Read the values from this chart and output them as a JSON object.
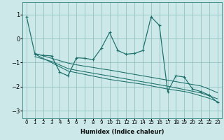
{
  "xlabel": "Humidex (Indice chaleur)",
  "background_color": "#cce8e8",
  "grid_color": "#88bbbb",
  "line_color": "#1a6e6a",
  "xlim": [
    -0.5,
    23.5
  ],
  "ylim": [
    -3.3,
    1.5
  ],
  "xticks": [
    0,
    1,
    2,
    3,
    4,
    5,
    6,
    7,
    8,
    9,
    10,
    11,
    12,
    13,
    14,
    15,
    16,
    17,
    18,
    19,
    20,
    21,
    22,
    23
  ],
  "yticks": [
    -3,
    -2,
    -1,
    0,
    1
  ],
  "jagged_x": [
    0,
    1,
    2,
    3,
    4,
    5,
    6,
    7,
    8,
    9,
    10,
    11,
    12,
    13,
    14,
    15,
    16,
    17,
    18,
    19,
    20,
    21,
    22,
    23
  ],
  "jagged_y": [
    0.9,
    -0.65,
    -0.7,
    -0.72,
    -1.4,
    -1.55,
    -0.8,
    -0.82,
    -0.88,
    -0.4,
    0.25,
    -0.5,
    -0.65,
    -0.62,
    -0.5,
    0.9,
    0.55,
    -2.2,
    -1.55,
    -1.6,
    -2.1,
    -2.2,
    -2.35,
    -2.65
  ],
  "trend1_x": [
    1,
    2,
    3,
    4,
    5,
    6,
    7,
    8,
    9,
    10,
    11,
    12,
    13,
    14,
    15,
    16,
    17,
    18,
    19,
    20,
    21,
    22,
    23
  ],
  "trend1_y": [
    -0.62,
    -0.72,
    -0.82,
    -0.92,
    -1.02,
    -1.09,
    -1.15,
    -1.2,
    -1.26,
    -1.31,
    -1.37,
    -1.43,
    -1.49,
    -1.55,
    -1.61,
    -1.67,
    -1.73,
    -1.79,
    -1.85,
    -1.91,
    -1.97,
    -2.1,
    -2.25
  ],
  "trend2_x": [
    1,
    2,
    3,
    4,
    5,
    6,
    7,
    8,
    9,
    10,
    11,
    12,
    13,
    14,
    15,
    16,
    17,
    18,
    19,
    20,
    21,
    22,
    23
  ],
  "trend2_y": [
    -0.75,
    -0.85,
    -0.95,
    -1.1,
    -1.25,
    -1.32,
    -1.38,
    -1.44,
    -1.5,
    -1.56,
    -1.62,
    -1.68,
    -1.74,
    -1.8,
    -1.86,
    -1.92,
    -1.98,
    -2.05,
    -2.12,
    -2.19,
    -2.26,
    -2.38,
    -2.5
  ],
  "trend3_x": [
    1,
    5,
    10,
    14,
    17,
    19,
    20,
    21,
    22,
    23
  ],
  "trend3_y": [
    -0.65,
    -1.35,
    -1.7,
    -1.9,
    -2.1,
    -2.2,
    -2.28,
    -2.38,
    -2.48,
    -2.62
  ]
}
